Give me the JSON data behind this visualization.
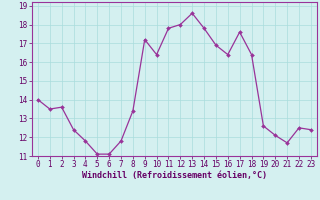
{
  "x": [
    0,
    1,
    2,
    3,
    4,
    5,
    6,
    7,
    8,
    9,
    10,
    11,
    12,
    13,
    14,
    15,
    16,
    17,
    18,
    19,
    20,
    21,
    22,
    23
  ],
  "y": [
    14.0,
    13.5,
    13.6,
    12.4,
    11.8,
    11.1,
    11.1,
    11.8,
    13.4,
    17.2,
    16.4,
    17.8,
    18.0,
    18.6,
    17.8,
    16.9,
    16.4,
    17.6,
    16.4,
    12.6,
    12.1,
    11.7,
    12.5,
    12.4
  ],
  "line_color": "#993399",
  "marker_color": "#993399",
  "bg_color": "#d4f0f0",
  "grid_color": "#aadddd",
  "xlabel": "Windchill (Refroidissement éolien,°C)",
  "xlabel_color": "#660066",
  "tick_color": "#660066",
  "spine_color": "#993399",
  "ylim": [
    11,
    19
  ],
  "xlim": [
    -0.5,
    23.5
  ],
  "yticks": [
    11,
    12,
    13,
    14,
    15,
    16,
    17,
    18,
    19
  ],
  "xticks": [
    0,
    1,
    2,
    3,
    4,
    5,
    6,
    7,
    8,
    9,
    10,
    11,
    12,
    13,
    14,
    15,
    16,
    17,
    18,
    19,
    20,
    21,
    22,
    23
  ],
  "tick_fontsize": 5.5,
  "xlabel_fontsize": 6.0
}
